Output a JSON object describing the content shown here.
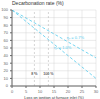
{
  "chart_data": {
    "type": "line",
    "title": "Decarbonation rate (%)",
    "x_label": "Loss on ignition at furnace inlet (%)",
    "x": [
      0,
      30
    ],
    "series": [
      {
        "color": "#55ccee",
        "values": [
          100,
          37
        ],
        "line_style": "dashed"
      },
      {
        "color": "#55ccee",
        "values": [
          100,
          10
        ],
        "line_style": "dashed"
      }
    ],
    "xlim": [
      0,
      30
    ],
    "ylim": [
      0,
      100
    ],
    "xticks": [
      0,
      5,
      10,
      15,
      20,
      25,
      30
    ],
    "yticks": [
      0,
      10,
      20,
      30,
      40,
      50,
      60,
      70,
      80,
      90,
      100
    ],
    "grid": true,
    "vlines": [
      8,
      13
    ],
    "annotations": [
      {
        "text": "η₁ = 0.7%",
        "x": 19,
        "y": 64,
        "color": "#55ccee"
      },
      {
        "text": "η₁ = 1.0%",
        "x": 14.5,
        "y": 50,
        "color": "#55ccee"
      },
      {
        "text": "8 %",
        "x": 8,
        "y": 12
      },
      {
        "text": "100 %",
        "x": 13,
        "y": 12
      }
    ]
  }
}
